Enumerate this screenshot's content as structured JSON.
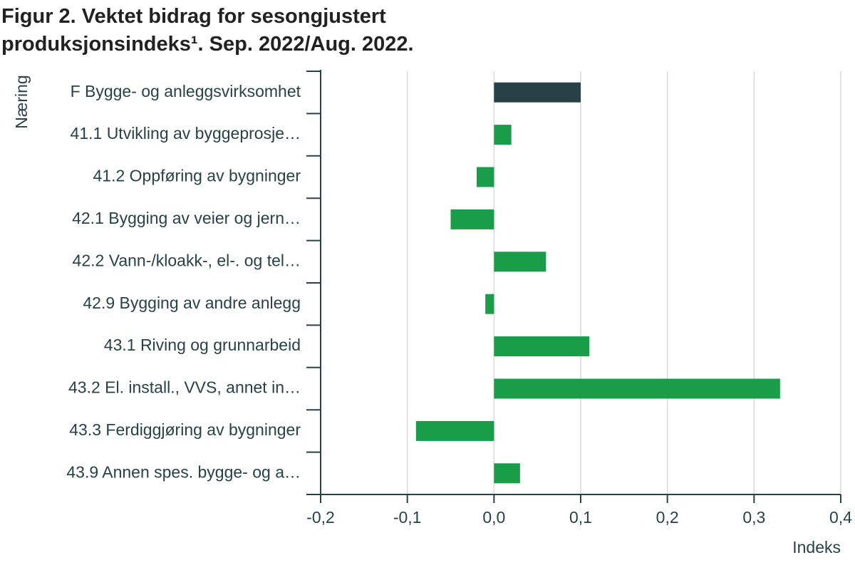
{
  "title_lines": [
    "Figur 2. Vektet bidrag for sesongjustert",
    "produksjonsindeks¹. Sep. 2022/Aug. 2022."
  ],
  "colors": {
    "total_bar": "#274247",
    "bar": "#1a9d49",
    "grid": "#d9d9d9",
    "axis": "#274247"
  },
  "chart_data": {
    "type": "bar",
    "orientation": "horizontal",
    "ylabel": "Næring",
    "xlabel": "Indeks",
    "xlim": [
      -0.2,
      0.4
    ],
    "xticks": [
      -0.2,
      -0.1,
      0.0,
      0.1,
      0.2,
      0.3,
      0.4
    ],
    "xtick_labels": [
      "-0,2",
      "-0,1",
      "0,0",
      "0,1",
      "0,2",
      "0,3",
      "0,4"
    ],
    "grid": "vertical",
    "categories": [
      "F Bygge- og anleggsvirksomhet",
      "41.1 Utvikling av byggeprosje…",
      "41.2 Oppføring av bygninger",
      "42.1 Bygging av veier og jern…",
      "42.2 Vann-/kloakk-, el-. og tel…",
      "42.9 Bygging av andre anlegg",
      "43.1 Riving og grunnarbeid",
      "43.2 El. install., VVS, annet in…",
      "43.3 Ferdiggjøring av bygninger",
      "43.9 Annen spes. bygge- og a…"
    ],
    "values": [
      0.1,
      0.02,
      -0.02,
      -0.05,
      0.06,
      -0.01,
      0.11,
      0.33,
      -0.09,
      0.03
    ]
  }
}
